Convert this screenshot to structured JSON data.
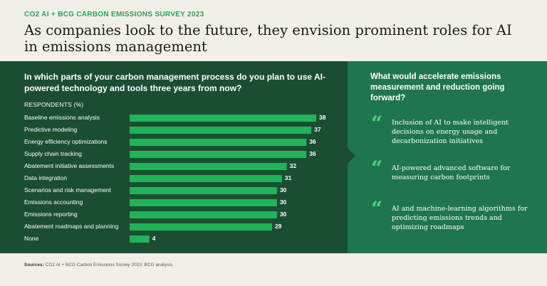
{
  "kicker": "CO2 AI + BCG CARBON EMISSIONS SURVEY 2023",
  "headline": "As companies look to the future, they envision prominent roles for AI in emissions management",
  "chart_data": {
    "type": "bar",
    "orientation": "horizontal",
    "title": "In which parts of your carbon management process do you plan to use AI-powered technology and tools three years from now?",
    "unit_label": "RESPONDENTS (%)",
    "categories": [
      "Baseline emissions analysis",
      "Predictive modeling",
      "Energy efficiency optimizations",
      "Supply chain tracking",
      "Abatement initiative assessments",
      "Data integration",
      "Scenarios and risk management",
      "Emissions accounting",
      "Emissions reporting",
      "Abatement roadmaps and planning",
      "None"
    ],
    "values": [
      38,
      37,
      36,
      36,
      32,
      31,
      30,
      30,
      30,
      29,
      4
    ],
    "xlim": [
      0,
      38
    ],
    "bar_color": "#22b35a",
    "grid": false
  },
  "right_panel": {
    "title": "What would accelerate emissions measurement and reduction going forward?",
    "quote_glyph": "“",
    "quotes": [
      "Inclusion of AI to make intelligent decisions on energy usage and decarbonization initiatives",
      "AI-powered advanced software for measuring carbon footprints",
      "AI and machine-learning algorithms for predicting emissions trends and optimizing roadmaps"
    ]
  },
  "source": {
    "label": "Sources:",
    "text": "CO2 AI + BCG Carbon Emissions Survey 2023; BCG analysis."
  },
  "colors": {
    "background": "#f2efe9",
    "left_panel": "#1b4d33",
    "right_panel": "#1f7550",
    "accent": "#29a35a",
    "quote_mark": "#4fd47d"
  }
}
